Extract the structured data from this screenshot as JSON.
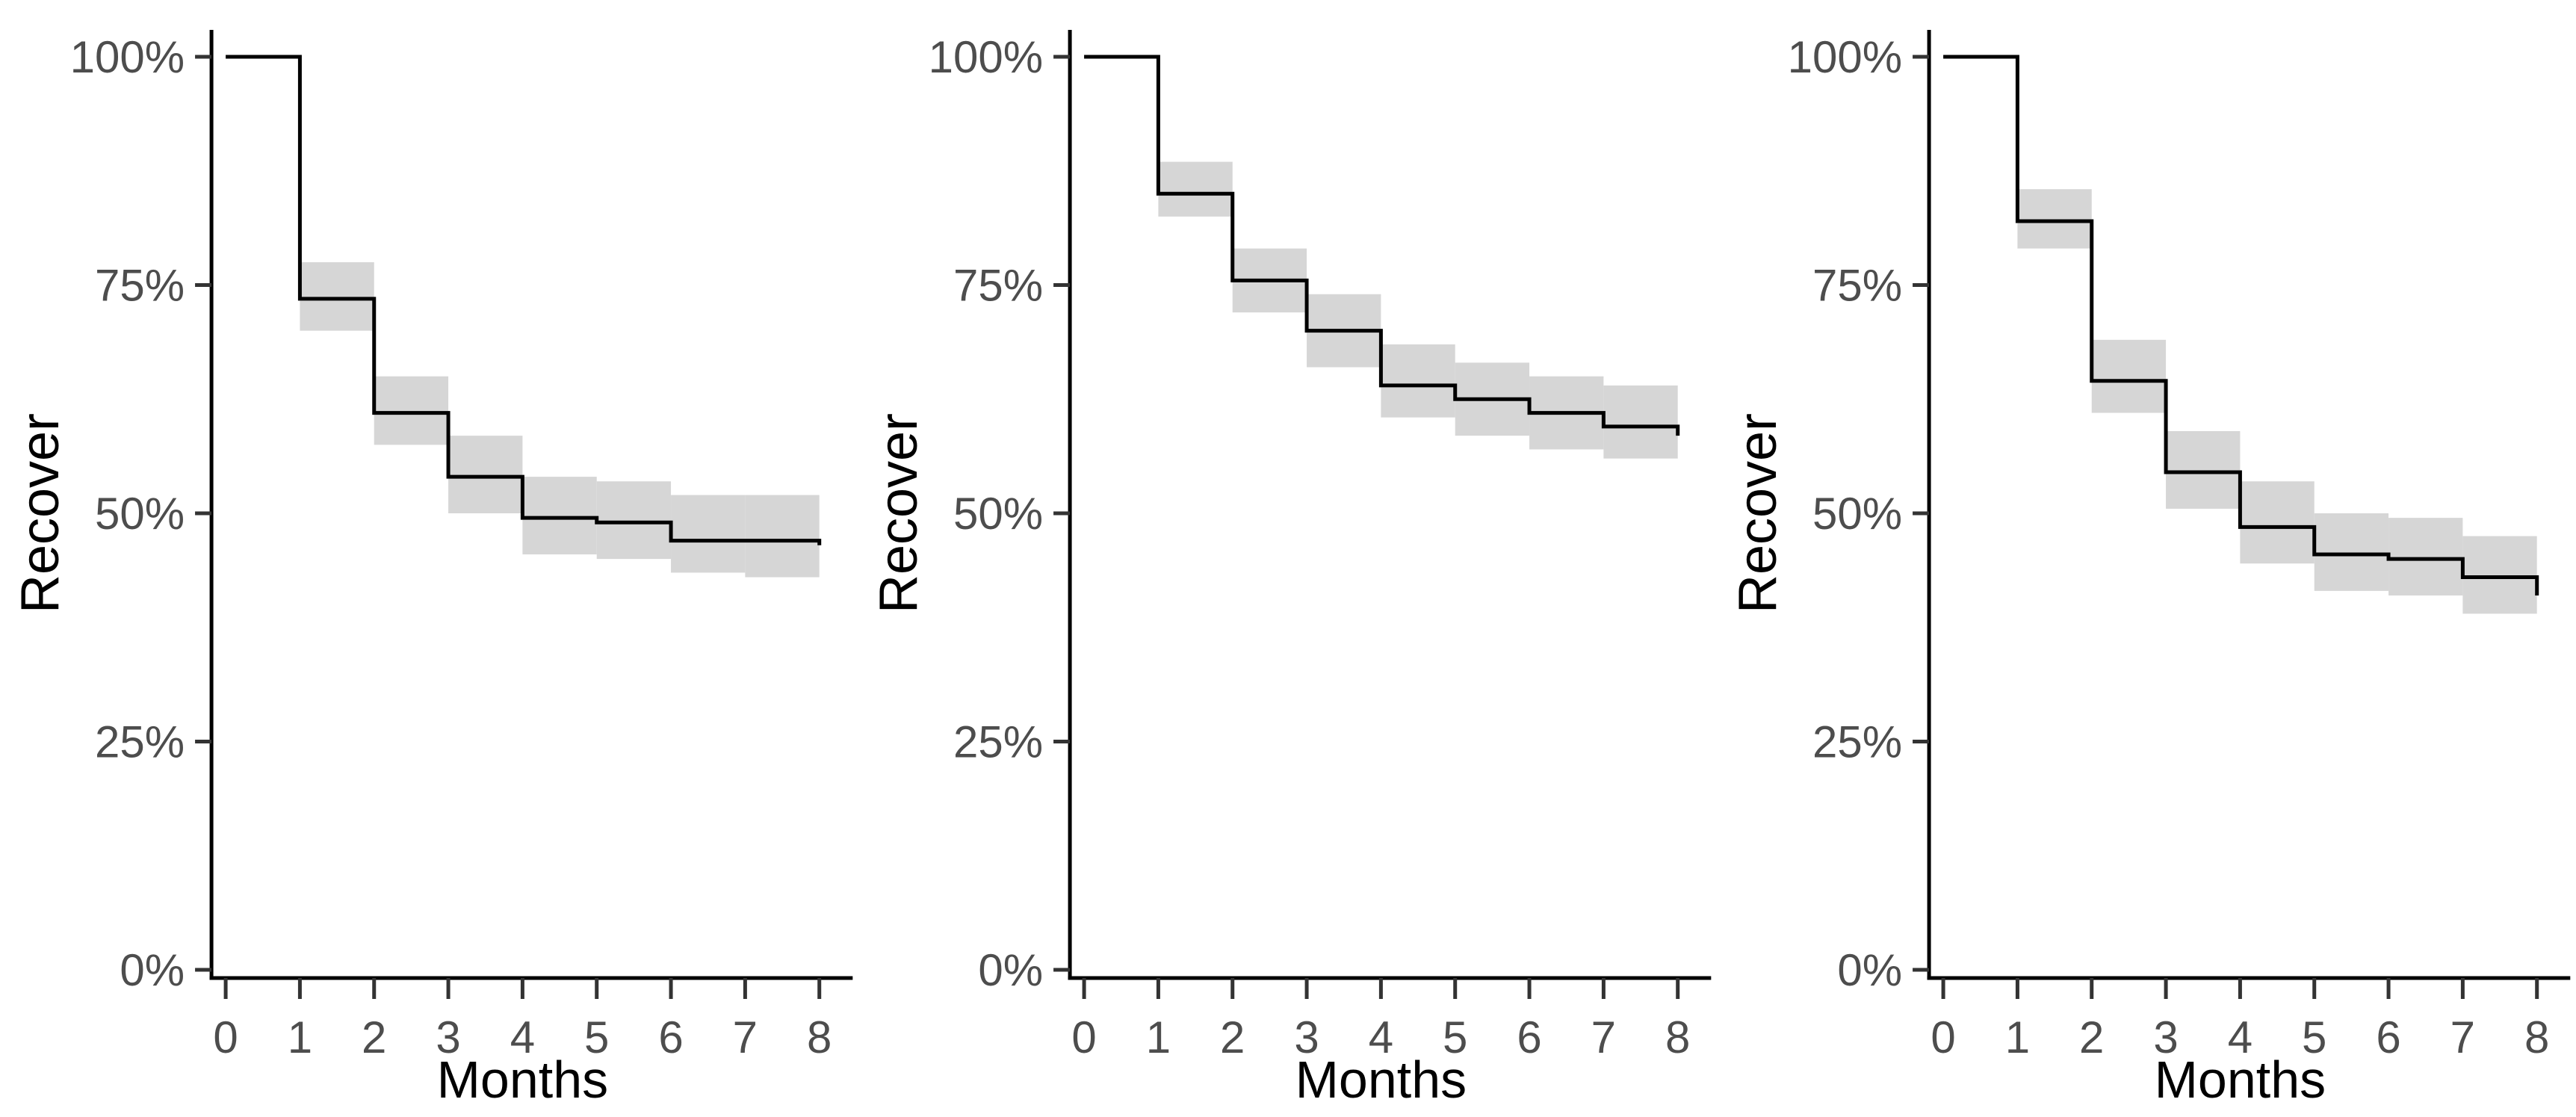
{
  "figure": {
    "background": "#ffffff",
    "colors": {
      "step_line": "#000000",
      "confidence_band": "#d6d6d6",
      "axis_line": "#000000",
      "tick_mark": "#333333",
      "tick_label": "#4d4d4d",
      "axis_title": "#000000"
    }
  },
  "chart_data": [
    {
      "type": "line",
      "subtype": "kaplan-meier-step-with-ci-band",
      "panel": "left",
      "title": "",
      "xlabel": "Months",
      "ylabel": "Recover",
      "xlim": [
        0,
        8
      ],
      "ylim": [
        0,
        100
      ],
      "grid": "off",
      "legend": "none",
      "xticks": [
        "0",
        "1",
        "2",
        "3",
        "4",
        "5",
        "6",
        "7",
        "8"
      ],
      "xtick_values": [
        0,
        1,
        2,
        3,
        4,
        5,
        6,
        7,
        8
      ],
      "ytick_labels": [
        "0%",
        "25%",
        "50%",
        "75%",
        "100%"
      ],
      "ytick_values": [
        0,
        25,
        50,
        75,
        100
      ],
      "interval_start_months": [
        0,
        1,
        2,
        3,
        4,
        5,
        6,
        7
      ],
      "survival_pct": [
        100,
        73.5,
        61,
        54,
        49.5,
        49,
        47,
        47
      ],
      "ci_upper_pct": [
        null,
        77.5,
        65,
        58.5,
        54,
        53.5,
        52,
        52
      ],
      "ci_lower_pct": [
        null,
        70,
        57.5,
        50,
        45.5,
        45,
        43.5,
        43
      ],
      "final_month": 8,
      "final_value_pct": 46.5
    },
    {
      "type": "line",
      "subtype": "kaplan-meier-step-with-ci-band",
      "panel": "middle",
      "title": "",
      "xlabel": "Months",
      "ylabel": "Recover",
      "xlim": [
        0,
        8
      ],
      "ylim": [
        0,
        100
      ],
      "grid": "off",
      "legend": "none",
      "xticks": [
        "0",
        "1",
        "2",
        "3",
        "4",
        "5",
        "6",
        "7",
        "8"
      ],
      "xtick_values": [
        0,
        1,
        2,
        3,
        4,
        5,
        6,
        7,
        8
      ],
      "ytick_labels": [
        "0%",
        "25%",
        "50%",
        "75%",
        "100%"
      ],
      "ytick_values": [
        0,
        25,
        50,
        75,
        100
      ],
      "interval_start_months": [
        0,
        1,
        2,
        3,
        4,
        5,
        6,
        7
      ],
      "survival_pct": [
        100,
        85,
        75.5,
        70,
        64,
        62.5,
        61,
        59.5
      ],
      "ci_upper_pct": [
        null,
        88.5,
        79,
        74,
        68.5,
        66.5,
        65,
        64
      ],
      "ci_lower_pct": [
        null,
        82.5,
        72,
        66,
        60.5,
        58.5,
        57,
        56
      ],
      "final_month": 8,
      "final_value_pct": 58.5
    },
    {
      "type": "line",
      "subtype": "kaplan-meier-step-with-ci-band",
      "panel": "right",
      "title": "",
      "xlabel": "Months",
      "ylabel": "Recover",
      "xlim": [
        0,
        8
      ],
      "ylim": [
        0,
        100
      ],
      "grid": "off",
      "legend": "none",
      "xticks": [
        "0",
        "1",
        "2",
        "3",
        "4",
        "5",
        "6",
        "7",
        "8"
      ],
      "xtick_values": [
        0,
        1,
        2,
        3,
        4,
        5,
        6,
        7,
        8
      ],
      "ytick_labels": [
        "0%",
        "25%",
        "50%",
        "75%",
        "100%"
      ],
      "ytick_values": [
        0,
        25,
        50,
        75,
        100
      ],
      "interval_start_months": [
        0,
        1,
        2,
        3,
        4,
        5,
        6,
        7
      ],
      "survival_pct": [
        100,
        82,
        64.5,
        54.5,
        48.5,
        45.5,
        45,
        43
      ],
      "ci_upper_pct": [
        null,
        85.5,
        69,
        59,
        53.5,
        50,
        49.5,
        47.5
      ],
      "ci_lower_pct": [
        null,
        79,
        61,
        50.5,
        44.5,
        41.5,
        41,
        39
      ],
      "final_month": 8,
      "final_value_pct": 41
    }
  ]
}
